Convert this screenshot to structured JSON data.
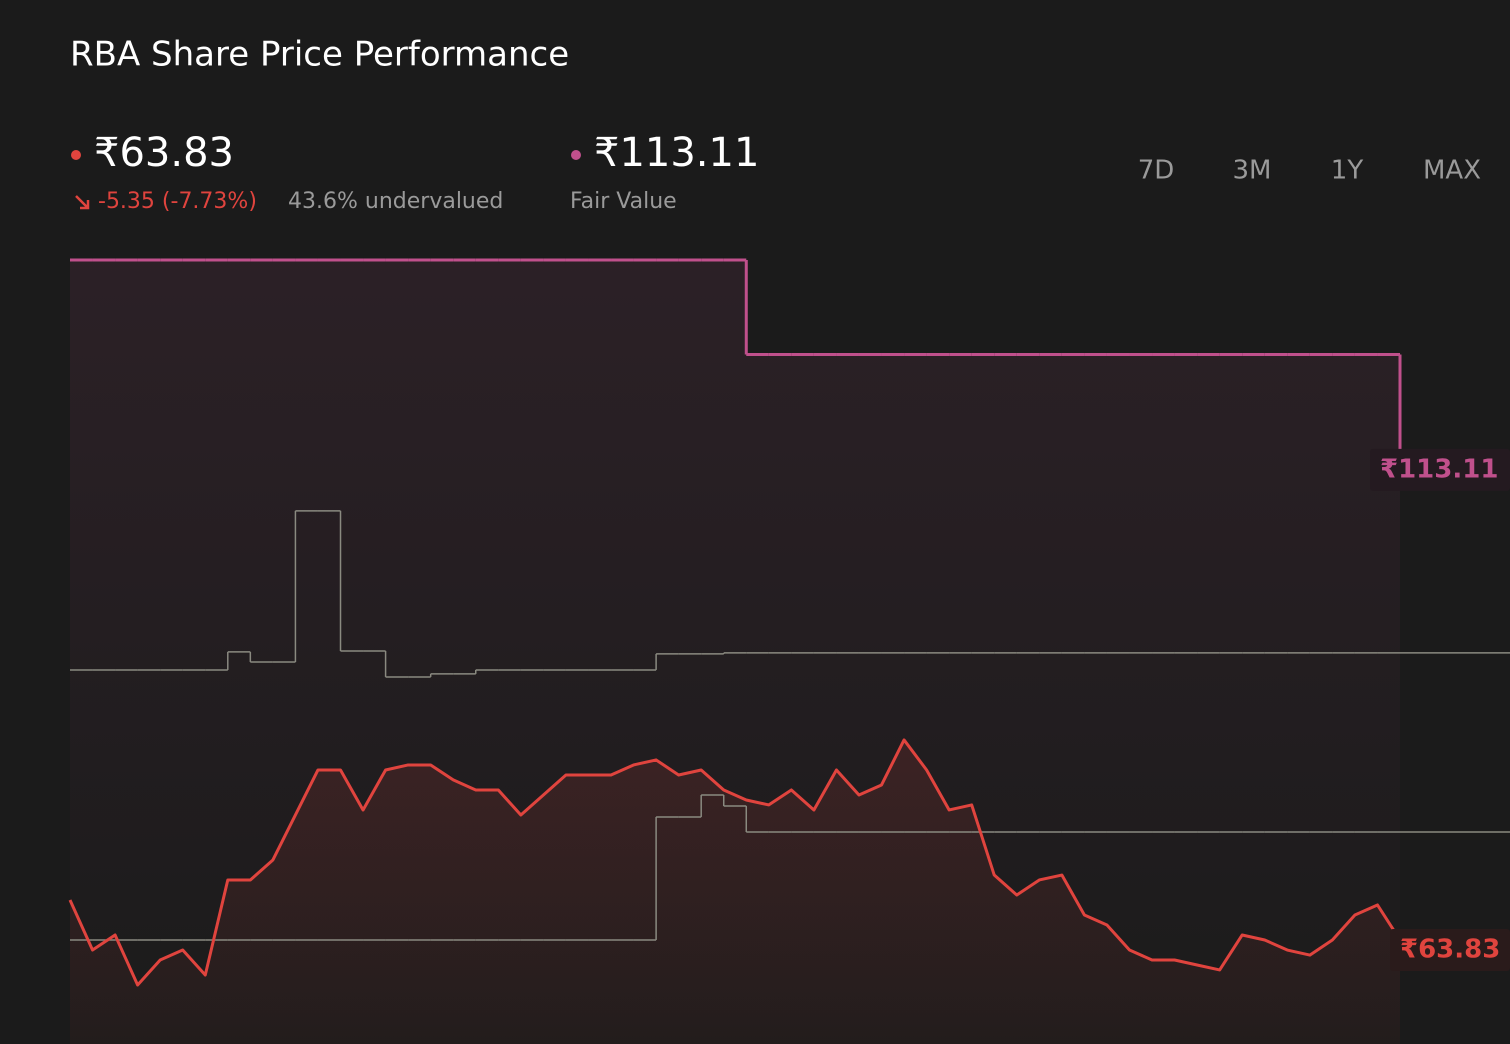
{
  "header": {
    "title": "RBA Share Price Performance",
    "price": "₹63.83",
    "change": "-5.35 (-7.73%)",
    "valuation": "43.6% undervalued",
    "fair_value": "₹113.11",
    "fair_value_caption": "Fair Value"
  },
  "timeframes": {
    "options": [
      "7D",
      "3M",
      "1Y",
      "MAX"
    ],
    "active": "1Y"
  },
  "chart_data": {
    "type": "line",
    "series": [
      {
        "color": "#e0443e",
        "step": false,
        "last_label": "₹63.83",
        "values": [
          67.89,
          62.81,
          64.34,
          59.26,
          61.8,
          62.81,
          60.27,
          69.93,
          69.93,
          71.96,
          76.53,
          81.1,
          81.1,
          77.04,
          81.1,
          81.61,
          81.61,
          80.09,
          79.07,
          79.07,
          76.53,
          78.56,
          80.59,
          80.59,
          80.59,
          81.61,
          82.12,
          80.59,
          81.1,
          79.07,
          78.05,
          77.55,
          79.07,
          77.04,
          81.1,
          78.56,
          79.58,
          84.15,
          81.1,
          77.04,
          77.55,
          70.43,
          68.4,
          69.93,
          70.43,
          66.37,
          65.35,
          62.81,
          61.8,
          61.8,
          61.29,
          60.79,
          64.34,
          63.83,
          62.81,
          62.3,
          63.83,
          66.37,
          67.39,
          63.83
        ]
      },
      {
        "color": "#c0508c",
        "step": true,
        "last_label": "₹113.11",
        "values": [
          132.9,
          132.9,
          132.9,
          132.9,
          132.9,
          132.9,
          132.9,
          132.9,
          132.9,
          132.9,
          132.9,
          132.9,
          132.9,
          132.9,
          132.9,
          132.9,
          132.9,
          132.9,
          132.9,
          132.9,
          132.9,
          132.9,
          132.9,
          132.9,
          132.9,
          132.9,
          132.9,
          132.9,
          132.9,
          132.9,
          123.3,
          123.3,
          123.3,
          123.3,
          123.3,
          123.3,
          123.3,
          123.3,
          123.3,
          123.3,
          123.3,
          123.3,
          123.3,
          123.3,
          123.3,
          123.3,
          123.3,
          123.3,
          123.3,
          123.3,
          123.3,
          123.3,
          123.3,
          123.3,
          123.3,
          123.3,
          123.3,
          123.3,
          123.3,
          113.11
        ]
      },
      {
        "color": "#8a8a80",
        "step": true,
        "values": [
          91.26,
          91.26,
          91.26,
          91.26,
          91.26,
          91.26,
          91.26,
          93.09,
          92.07,
          92.07,
          107.42,
          107.42,
          93.19,
          93.19,
          90.55,
          90.55,
          90.86,
          90.86,
          91.26,
          91.26,
          91.26,
          91.26,
          91.26,
          91.26,
          91.26,
          91.26,
          92.89,
          92.89,
          92.89,
          92.99,
          92.99,
          92.99,
          92.99,
          92.99,
          92.99,
          92.99,
          92.99,
          92.99,
          92.99,
          92.99,
          92.99,
          92.99,
          92.99,
          92.99,
          92.99,
          92.99,
          92.99,
          92.99,
          92.99,
          92.99,
          92.99,
          92.99,
          92.99,
          92.99,
          92.99,
          92.99,
          92.99,
          92.99,
          92.99,
          92.99
        ]
      },
      {
        "color": "#8a8a80",
        "step": true,
        "values": [
          63.83,
          63.83,
          63.83,
          63.83,
          63.83,
          63.83,
          63.83,
          63.83,
          63.83,
          63.83,
          63.83,
          63.83,
          63.83,
          63.83,
          63.83,
          63.83,
          63.83,
          63.83,
          63.83,
          63.83,
          63.83,
          63.83,
          63.83,
          63.83,
          63.83,
          63.83,
          76.33,
          76.33,
          78.56,
          77.44,
          74.8,
          74.8,
          74.8,
          74.8,
          74.8,
          74.8,
          74.8,
          74.8,
          74.8,
          74.8,
          74.8,
          74.8,
          74.8,
          74.8,
          74.8,
          74.8,
          74.8,
          74.8,
          74.8,
          74.8,
          74.8,
          74.8,
          74.8,
          74.8,
          74.8,
          74.8,
          74.8,
          74.8,
          74.8,
          74.8
        ]
      }
    ]
  }
}
